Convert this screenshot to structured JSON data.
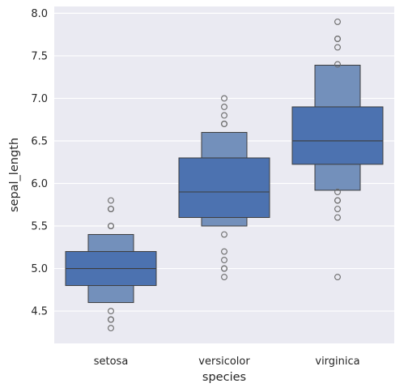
{
  "chart_data": {
    "type": "boxen",
    "xlabel": "species",
    "ylabel": "sepal_length",
    "categories": [
      "setosa",
      "versicolor",
      "virginica"
    ],
    "ylim": [
      4.12,
      8.08
    ],
    "yticks": [
      4.5,
      5.0,
      5.5,
      6.0,
      6.5,
      7.0,
      7.5,
      8.0
    ],
    "ytick_labels": [
      "4.5",
      "5.0",
      "5.5",
      "6.0",
      "6.5",
      "7.0",
      "7.5",
      "8.0"
    ],
    "grid": true,
    "colors": {
      "background": "#eaeaf2",
      "grid": "#ffffff",
      "box_inner": "#4c72b0",
      "box_outer": "#7390bb",
      "edge": "#3d3d3d",
      "outlier": "#6a6a6a"
    },
    "groups": [
      {
        "category": "setosa",
        "median": 5.0,
        "boxes": [
          {
            "low": 4.8,
            "high": 5.2
          },
          {
            "low": 4.6,
            "high": 5.4
          }
        ],
        "outliers": [
          4.3,
          4.4,
          4.4,
          4.5,
          5.5,
          5.5,
          5.7,
          5.7,
          5.8
        ]
      },
      {
        "category": "versicolor",
        "median": 5.9,
        "boxes": [
          {
            "low": 5.6,
            "high": 6.3
          },
          {
            "low": 5.5,
            "high": 6.6
          }
        ],
        "outliers": [
          4.9,
          5.0,
          5.0,
          5.1,
          5.2,
          5.4,
          6.7,
          6.7,
          6.8,
          6.9,
          7.0
        ]
      },
      {
        "category": "virginica",
        "median": 6.5,
        "boxes": [
          {
            "low": 6.225,
            "high": 6.9
          },
          {
            "low": 5.92,
            "high": 7.39
          }
        ],
        "outliers": [
          4.9,
          5.6,
          5.7,
          5.8,
          5.8,
          5.9,
          7.4,
          7.6,
          7.7,
          7.7,
          7.9
        ]
      }
    ]
  }
}
